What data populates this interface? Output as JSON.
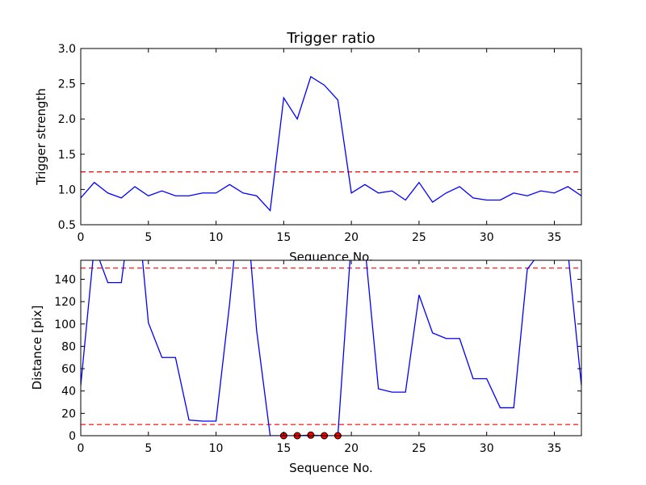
{
  "chart_data": [
    {
      "type": "line",
      "title": "Trigger ratio",
      "xlabel": "Sequence No.",
      "ylabel": "Trigger strength",
      "xlim": [
        0,
        37
      ],
      "ylim": [
        0.5,
        3.0
      ],
      "xticks": [
        0,
        5,
        10,
        15,
        20,
        25,
        30,
        35
      ],
      "yticks": [
        0.5,
        1.0,
        1.5,
        2.0,
        2.5,
        3.0
      ],
      "line_color": "#0000ff",
      "threshold_color": "#ff0000",
      "thresholds": [
        1.25
      ],
      "series": [
        {
          "x": [
            0,
            1,
            2,
            3,
            4,
            5,
            6,
            7,
            8,
            9,
            10,
            11,
            12,
            13,
            14,
            15,
            16,
            17,
            18,
            19,
            20,
            21,
            22,
            23,
            24,
            25,
            26,
            27,
            28,
            29,
            30,
            31,
            32,
            33,
            34,
            35,
            36,
            37
          ],
          "values": [
            0.88,
            1.1,
            0.95,
            0.88,
            1.04,
            0.91,
            0.98,
            0.91,
            0.91,
            0.95,
            0.95,
            1.07,
            0.95,
            0.91,
            0.7,
            2.3,
            2.0,
            2.6,
            2.48,
            2.27,
            0.95,
            1.07,
            0.95,
            0.98,
            0.85,
            1.1,
            0.82,
            0.95,
            1.04,
            0.88,
            0.85,
            0.85,
            0.95,
            0.91,
            0.98,
            0.95,
            1.04,
            0.91
          ]
        }
      ]
    },
    {
      "type": "line",
      "title": "",
      "xlabel": "Sequence No.",
      "ylabel": "Distance [pix]",
      "xlim": [
        0,
        37
      ],
      "ylim": [
        0,
        157
      ],
      "xticks": [
        0,
        5,
        10,
        15,
        20,
        25,
        30,
        35
      ],
      "yticks": [
        0,
        20,
        40,
        60,
        80,
        100,
        120,
        140
      ],
      "line_color": "#0000ff",
      "threshold_color": "#ff0000",
      "marker_color": "#ff0000",
      "thresholds": [
        10,
        150
      ],
      "series": [
        {
          "x": [
            0,
            1,
            2,
            3,
            4,
            5,
            6,
            7,
            8,
            9,
            10,
            11,
            12,
            13,
            14,
            15,
            16,
            17,
            18,
            19,
            20,
            21,
            22,
            23,
            24,
            25,
            26,
            27,
            28,
            29,
            30,
            31,
            32,
            33,
            34,
            35,
            36,
            37
          ],
          "values": [
            45,
            170,
            137,
            137,
            230,
            101,
            70,
            70,
            14,
            13,
            13,
            118,
            240,
            94,
            0,
            0,
            0,
            0.5,
            0,
            0,
            175,
            170,
            42,
            39,
            39,
            126,
            92,
            87,
            87,
            51,
            51,
            25,
            25,
            149,
            165,
            165,
            165,
            45
          ]
        }
      ],
      "markers": {
        "x": [
          15,
          16,
          17,
          18,
          19
        ],
        "values": [
          0,
          0,
          0.5,
          0,
          0
        ]
      }
    }
  ]
}
